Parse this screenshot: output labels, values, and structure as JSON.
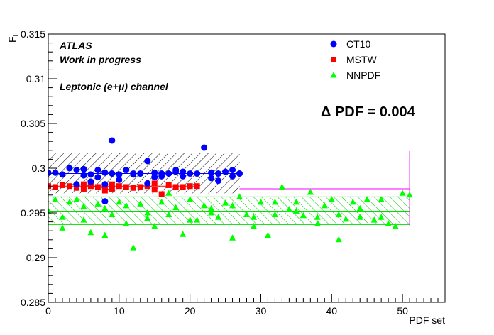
{
  "chart_data": {
    "type": "scatter",
    "title": "",
    "xlabel": "PDF set",
    "ylabel": "F",
    "ylabel_sub": "L",
    "xlim": [
      0,
      56
    ],
    "ylim": [
      0.285,
      0.315
    ],
    "x_ticks": [
      0,
      10,
      20,
      30,
      40,
      50
    ],
    "y_ticks": [
      0.285,
      0.29,
      0.295,
      0.3,
      0.305,
      0.31,
      0.315
    ],
    "x_tick_labels": [
      "0",
      "10",
      "20",
      "30",
      "40",
      "50"
    ],
    "y_tick_labels": [
      "0.285",
      "0.29",
      "0.295",
      "0.3",
      "0.305",
      "0.31",
      "0.315"
    ],
    "grid": false,
    "legend_position": "top-right",
    "annotations": {
      "experiment": "ATLAS",
      "status": "Work in progress",
      "channel": "Leptonic (e+μ) channel",
      "delta": "Δ PDF = 0.004"
    },
    "series": [
      {
        "name": "CT10",
        "marker": "circle",
        "color": "#0000ff",
        "central": 0.2994,
        "band": [
          0.2972,
          0.3017
        ],
        "band_x": [
          0,
          27
        ],
        "x": [
          0,
          1,
          2,
          3,
          4,
          4,
          5,
          5,
          6,
          6,
          7,
          7,
          8,
          8,
          8,
          9,
          9,
          10,
          10,
          11,
          12,
          12,
          13,
          14,
          14,
          15,
          15,
          16,
          16,
          17,
          18,
          18,
          19,
          19,
          20,
          21,
          22,
          23,
          23,
          24,
          24,
          25,
          26,
          26,
          27
        ],
        "y": [
          0.2995,
          0.2995,
          0.2993,
          0.3,
          0.2982,
          0.2998,
          0.2999,
          0.2992,
          0.2993,
          0.2985,
          0.2998,
          0.299,
          0.2995,
          0.2963,
          0.2982,
          0.3031,
          0.2994,
          0.2993,
          0.2987,
          0.2998,
          0.2993,
          0.2994,
          0.2994,
          0.3008,
          0.2983,
          0.2995,
          0.299,
          0.2994,
          0.2991,
          0.2994,
          0.2998,
          0.2996,
          0.2996,
          0.2991,
          0.2994,
          0.2994,
          0.3023,
          0.2995,
          0.2989,
          0.2994,
          0.2986,
          0.2996,
          0.2998,
          0.2991,
          0.2994
        ]
      },
      {
        "name": "MSTW",
        "marker": "square",
        "color": "#ff0000",
        "central": 0.298,
        "x": [
          0,
          1,
          2,
          3,
          4,
          5,
          5,
          6,
          6,
          7,
          8,
          8,
          9,
          9,
          10,
          11,
          12,
          13,
          14,
          15,
          15,
          16,
          17,
          18,
          19,
          20,
          21
        ],
        "y": [
          0.298,
          0.2979,
          0.2981,
          0.298,
          0.2978,
          0.2982,
          0.2977,
          0.2984,
          0.298,
          0.2979,
          0.2978,
          0.2975,
          0.2982,
          0.2977,
          0.298,
          0.2979,
          0.2978,
          0.2979,
          0.298,
          0.2983,
          0.2976,
          0.2971,
          0.2981,
          0.2979,
          0.2979,
          0.298,
          0.298
        ]
      },
      {
        "name": "NNPDF",
        "marker": "triangle",
        "color": "#00ff00",
        "central": 0.2952,
        "band": [
          0.2937,
          0.2968
        ],
        "band_x": [
          0,
          51
        ],
        "x": [
          0,
          1,
          2,
          3,
          4,
          5,
          6,
          7,
          8,
          9,
          10,
          11,
          12,
          13,
          14,
          15,
          16,
          17,
          18,
          19,
          20,
          21,
          22,
          23,
          24,
          25,
          26,
          27,
          28,
          29,
          30,
          31,
          32,
          33,
          34,
          35,
          36,
          37,
          38,
          39,
          40,
          41,
          42,
          43,
          44,
          45,
          46,
          47,
          48,
          49,
          50,
          51,
          2,
          5,
          8,
          11,
          14,
          17,
          20,
          23,
          26,
          29,
          32,
          35,
          38,
          41,
          44,
          47
        ],
        "y": [
          0.2952,
          0.2965,
          0.2933,
          0.2962,
          0.2965,
          0.2957,
          0.2928,
          0.296,
          0.2925,
          0.2948,
          0.2962,
          0.2958,
          0.2911,
          0.296,
          0.295,
          0.2935,
          0.2962,
          0.2972,
          0.2956,
          0.2926,
          0.2965,
          0.2942,
          0.2958,
          0.2955,
          0.2945,
          0.2961,
          0.2922,
          0.2968,
          0.2948,
          0.2935,
          0.2962,
          0.2925,
          0.2962,
          0.2979,
          0.2954,
          0.2962,
          0.2947,
          0.2973,
          0.2938,
          0.2958,
          0.2965,
          0.292,
          0.2943,
          0.2962,
          0.2945,
          0.2965,
          0.2942,
          0.2965,
          0.2938,
          0.2935,
          0.2972,
          0.297,
          0.2945,
          0.2942,
          0.2955,
          0.2938,
          0.2944,
          0.2948,
          0.2942,
          0.295,
          0.2958,
          0.2945,
          0.2948,
          0.2952,
          0.2945,
          0.2948,
          0.2955,
          0.2945
        ]
      }
    ]
  }
}
